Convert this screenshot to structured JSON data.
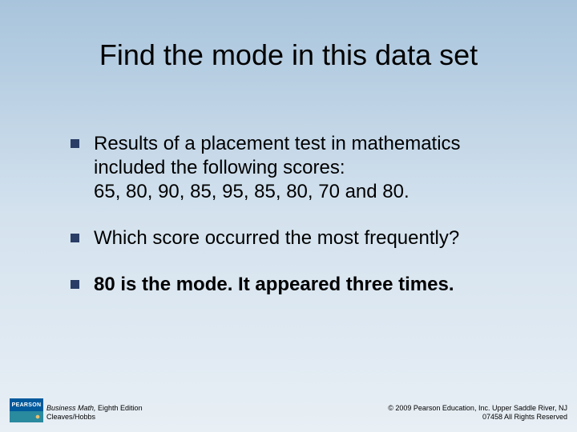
{
  "slide": {
    "title": "Find the mode in this data set",
    "bullets": [
      {
        "text": "Results of a placement test in mathematics included the following scores:\n65, 80, 90, 85, 95, 85, 80, 70 and 80.",
        "bold": false
      },
      {
        "text": "Which score occurred the most frequently?",
        "bold": false
      },
      {
        "text": "80 is the mode. It appeared three times.",
        "bold": true
      }
    ]
  },
  "style": {
    "background_gradient": [
      "#a8c4dc",
      "#d4e2ee",
      "#e8eff5"
    ],
    "bullet_color": "#293d66",
    "title_fontsize": 36,
    "body_fontsize": 24,
    "footer_fontsize": 9
  },
  "footer": {
    "logo_top": "PEARSON",
    "book_title": "Business Math,",
    "book_edition": " Eighth Edition",
    "authors": "Cleaves/Hobbs",
    "copyright_line1": "© 2009 Pearson Education, Inc. Upper Saddle River, NJ",
    "copyright_line2": "07458  All Rights Reserved"
  }
}
